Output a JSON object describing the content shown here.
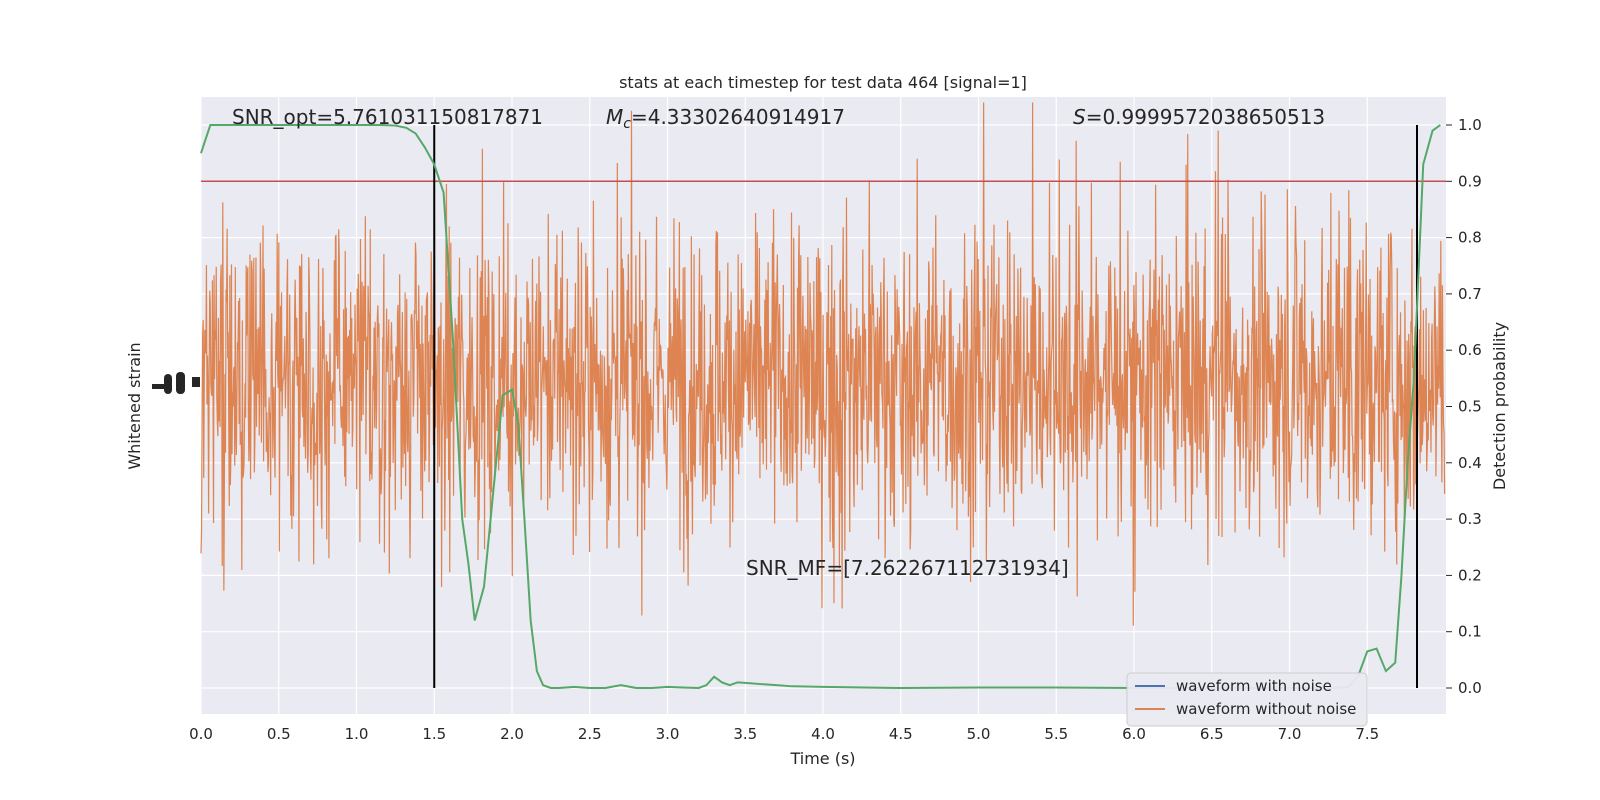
{
  "chart_data": {
    "type": "line",
    "title": "stats at each timestep for test data 464 [signal=1]",
    "xlabel": "Time (s)",
    "ylabel_left": "Whitened strain",
    "ylabel_right": "Detection probability",
    "xlim": [
      0.0,
      8.0
    ],
    "ylim_right": [
      -0.05,
      1.05
    ],
    "xticks": [
      "0.0",
      "0.5",
      "1.0",
      "1.5",
      "2.0",
      "2.5",
      "3.0",
      "3.5",
      "4.0",
      "4.5",
      "5.0",
      "5.5",
      "6.0",
      "6.5",
      "7.0",
      "7.5"
    ],
    "yticks_right": [
      "0.0",
      "0.1",
      "0.2",
      "0.3",
      "0.4",
      "0.5",
      "0.6",
      "0.7",
      "0.8",
      "0.9",
      "1.0"
    ],
    "grid": true,
    "legend_position": "lower-right",
    "annotations": {
      "snr_opt": "SNR_opt=5.761031150817871",
      "mc_symbol": "M",
      "mc_sub": "c",
      "mc_value": "=4.33302640914917",
      "s_symbol": "S",
      "s_value": "=0.9999572038650513",
      "snr_mf": "SNR_MF=[7.262267112731934]"
    },
    "vertical_lines_x": [
      1.5,
      7.82
    ],
    "threshold_y": 0.9,
    "series": [
      {
        "name": "waveform with noise",
        "color": "#4c72b0",
        "values": []
      },
      {
        "name": "waveform without noise",
        "color": "#dd8452",
        "note_amplitude_band": [
          0.4,
          0.7
        ]
      },
      {
        "color": "#55a868",
        "x": [
          0.0,
          0.06,
          0.15,
          0.3,
          0.5,
          0.8,
          1.0,
          1.15,
          1.25,
          1.32,
          1.38,
          1.44,
          1.5,
          1.56,
          1.62,
          1.68,
          1.72,
          1.76,
          1.82,
          1.88,
          1.94,
          2.0,
          2.04,
          2.08,
          2.12,
          2.16,
          2.2,
          2.25,
          2.3,
          2.4,
          2.5,
          2.6,
          2.7,
          2.8,
          2.9,
          3.0,
          3.1,
          3.2,
          3.25,
          3.3,
          3.35,
          3.4,
          3.45,
          3.5,
          3.6,
          3.7,
          3.8,
          4.0,
          4.5,
          5.0,
          5.5,
          6.0,
          6.5,
          7.0,
          7.2,
          7.3,
          7.38,
          7.44,
          7.5,
          7.56,
          7.62,
          7.68,
          7.72,
          7.76,
          7.8,
          7.86,
          7.92,
          7.97
        ],
        "y": [
          0.95,
          1.0,
          1.0,
          1.0,
          1.0,
          1.0,
          1.0,
          1.0,
          0.999,
          0.995,
          0.985,
          0.96,
          0.93,
          0.88,
          0.62,
          0.3,
          0.22,
          0.12,
          0.18,
          0.35,
          0.52,
          0.53,
          0.47,
          0.3,
          0.12,
          0.03,
          0.005,
          0.0,
          0.0,
          0.002,
          0.0,
          0.0,
          0.005,
          0.0,
          0.0,
          0.002,
          0.001,
          0.0,
          0.005,
          0.02,
          0.01,
          0.005,
          0.01,
          0.009,
          0.007,
          0.005,
          0.003,
          0.002,
          0.0,
          0.001,
          0.001,
          0.0,
          0.0,
          0.0,
          0.0,
          0.0,
          0.002,
          0.02,
          0.065,
          0.07,
          0.03,
          0.045,
          0.2,
          0.4,
          0.55,
          0.93,
          0.99,
          1.0
        ]
      }
    ]
  }
}
